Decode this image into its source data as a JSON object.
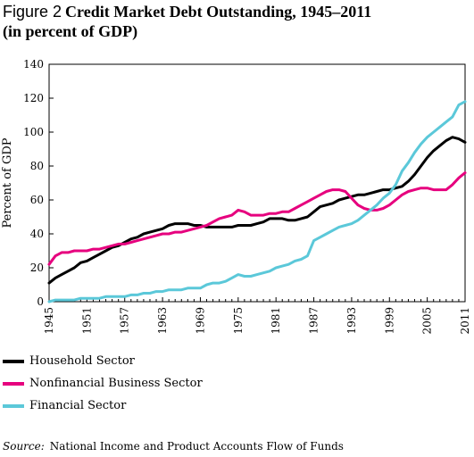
{
  "figure": {
    "label": "Figure 2",
    "title_line1": "Credit Market Debt Outstanding, 1945–2011",
    "title_line2": "(in percent of GDP)"
  },
  "source": {
    "label": "Source:",
    "text": "National Income and Product Accounts Flow of Funds"
  },
  "colors": {
    "household": "#000000",
    "business": "#e6007e",
    "financial": "#5bc8d9",
    "axis": "#000000"
  },
  "chart_data": {
    "type": "line",
    "title": "Credit Market Debt Outstanding, 1945–2011",
    "subtitle": "(in percent of GDP)",
    "xlabel": "",
    "ylabel": "Percent of GDP",
    "xlim": [
      1945,
      2011
    ],
    "ylim": [
      0,
      140
    ],
    "grid": false,
    "legend_position": "bottom-left",
    "x_ticks": [
      1945,
      1951,
      1957,
      1963,
      1969,
      1975,
      1981,
      1987,
      1993,
      1999,
      2005,
      2011
    ],
    "y_ticks": [
      0,
      20,
      40,
      60,
      80,
      100,
      120,
      140
    ],
    "series": [
      {
        "name": "Household Sector",
        "color_key": "household",
        "points": [
          [
            1945,
            11
          ],
          [
            1946,
            14
          ],
          [
            1947,
            16
          ],
          [
            1948,
            18
          ],
          [
            1949,
            20
          ],
          [
            1950,
            23
          ],
          [
            1951,
            24
          ],
          [
            1952,
            26
          ],
          [
            1953,
            28
          ],
          [
            1954,
            30
          ],
          [
            1955,
            32
          ],
          [
            1956,
            33
          ],
          [
            1957,
            35
          ],
          [
            1958,
            37
          ],
          [
            1959,
            38
          ],
          [
            1960,
            40
          ],
          [
            1961,
            41
          ],
          [
            1962,
            42
          ],
          [
            1963,
            43
          ],
          [
            1964,
            45
          ],
          [
            1965,
            46
          ],
          [
            1966,
            46
          ],
          [
            1967,
            46
          ],
          [
            1968,
            45
          ],
          [
            1969,
            45
          ],
          [
            1970,
            44
          ],
          [
            1971,
            44
          ],
          [
            1972,
            44
          ],
          [
            1973,
            44
          ],
          [
            1974,
            44
          ],
          [
            1975,
            45
          ],
          [
            1976,
            45
          ],
          [
            1977,
            45
          ],
          [
            1978,
            46
          ],
          [
            1979,
            47
          ],
          [
            1980,
            49
          ],
          [
            1981,
            49
          ],
          [
            1982,
            49
          ],
          [
            1983,
            48
          ],
          [
            1984,
            48
          ],
          [
            1985,
            49
          ],
          [
            1986,
            50
          ],
          [
            1987,
            53
          ],
          [
            1988,
            56
          ],
          [
            1989,
            57
          ],
          [
            1990,
            58
          ],
          [
            1991,
            60
          ],
          [
            1992,
            61
          ],
          [
            1993,
            62
          ],
          [
            1994,
            63
          ],
          [
            1995,
            63
          ],
          [
            1996,
            64
          ],
          [
            1997,
            65
          ],
          [
            1998,
            66
          ],
          [
            1999,
            66
          ],
          [
            2000,
            67
          ],
          [
            2001,
            68
          ],
          [
            2002,
            71
          ],
          [
            2003,
            75
          ],
          [
            2004,
            80
          ],
          [
            2005,
            85
          ],
          [
            2006,
            89
          ],
          [
            2007,
            92
          ],
          [
            2008,
            95
          ],
          [
            2009,
            97
          ],
          [
            2010,
            96
          ],
          [
            2011,
            94
          ]
        ]
      },
      {
        "name": "Nonfinancial Business Sector",
        "color_key": "business",
        "points": [
          [
            1945,
            22
          ],
          [
            1946,
            27
          ],
          [
            1947,
            29
          ],
          [
            1948,
            29
          ],
          [
            1949,
            30
          ],
          [
            1950,
            30
          ],
          [
            1951,
            30
          ],
          [
            1952,
            31
          ],
          [
            1953,
            31
          ],
          [
            1954,
            32
          ],
          [
            1955,
            33
          ],
          [
            1956,
            34
          ],
          [
            1957,
            34
          ],
          [
            1958,
            35
          ],
          [
            1959,
            36
          ],
          [
            1960,
            37
          ],
          [
            1961,
            38
          ],
          [
            1962,
            39
          ],
          [
            1963,
            40
          ],
          [
            1964,
            40
          ],
          [
            1965,
            41
          ],
          [
            1966,
            41
          ],
          [
            1967,
            42
          ],
          [
            1968,
            43
          ],
          [
            1969,
            44
          ],
          [
            1970,
            45
          ],
          [
            1971,
            47
          ],
          [
            1972,
            49
          ],
          [
            1973,
            50
          ],
          [
            1974,
            51
          ],
          [
            1975,
            54
          ],
          [
            1976,
            53
          ],
          [
            1977,
            51
          ],
          [
            1978,
            51
          ],
          [
            1979,
            51
          ],
          [
            1980,
            52
          ],
          [
            1981,
            52
          ],
          [
            1982,
            53
          ],
          [
            1983,
            53
          ],
          [
            1984,
            55
          ],
          [
            1985,
            57
          ],
          [
            1986,
            59
          ],
          [
            1987,
            61
          ],
          [
            1988,
            63
          ],
          [
            1989,
            65
          ],
          [
            1990,
            66
          ],
          [
            1991,
            66
          ],
          [
            1992,
            65
          ],
          [
            1993,
            61
          ],
          [
            1994,
            57
          ],
          [
            1995,
            55
          ],
          [
            1996,
            54
          ],
          [
            1997,
            54
          ],
          [
            1998,
            55
          ],
          [
            1999,
            57
          ],
          [
            2000,
            60
          ],
          [
            2001,
            63
          ],
          [
            2002,
            65
          ],
          [
            2003,
            66
          ],
          [
            2004,
            67
          ],
          [
            2005,
            67
          ],
          [
            2006,
            66
          ],
          [
            2007,
            66
          ],
          [
            2008,
            66
          ],
          [
            2009,
            69
          ],
          [
            2010,
            73
          ],
          [
            2011,
            76
          ]
        ]
      },
      {
        "name": "Financial Sector",
        "color_key": "financial",
        "points": [
          [
            1945,
            0
          ],
          [
            1946,
            1
          ],
          [
            1947,
            1
          ],
          [
            1948,
            1
          ],
          [
            1949,
            1
          ],
          [
            1950,
            2
          ],
          [
            1951,
            2
          ],
          [
            1952,
            2
          ],
          [
            1953,
            2
          ],
          [
            1954,
            3
          ],
          [
            1955,
            3
          ],
          [
            1956,
            3
          ],
          [
            1957,
            3
          ],
          [
            1958,
            4
          ],
          [
            1959,
            4
          ],
          [
            1960,
            5
          ],
          [
            1961,
            5
          ],
          [
            1962,
            6
          ],
          [
            1963,
            6
          ],
          [
            1964,
            7
          ],
          [
            1965,
            7
          ],
          [
            1966,
            7
          ],
          [
            1967,
            8
          ],
          [
            1968,
            8
          ],
          [
            1969,
            8
          ],
          [
            1970,
            10
          ],
          [
            1971,
            11
          ],
          [
            1972,
            11
          ],
          [
            1973,
            12
          ],
          [
            1974,
            14
          ],
          [
            1975,
            16
          ],
          [
            1976,
            15
          ],
          [
            1977,
            15
          ],
          [
            1978,
            16
          ],
          [
            1979,
            17
          ],
          [
            1980,
            18
          ],
          [
            1981,
            20
          ],
          [
            1982,
            21
          ],
          [
            1983,
            22
          ],
          [
            1984,
            24
          ],
          [
            1985,
            25
          ],
          [
            1986,
            27
          ],
          [
            1987,
            36
          ],
          [
            1988,
            38
          ],
          [
            1989,
            40
          ],
          [
            1990,
            42
          ],
          [
            1991,
            44
          ],
          [
            1992,
            45
          ],
          [
            1993,
            46
          ],
          [
            1994,
            48
          ],
          [
            1995,
            51
          ],
          [
            1996,
            54
          ],
          [
            1997,
            57
          ],
          [
            1998,
            61
          ],
          [
            1999,
            64
          ],
          [
            2000,
            69
          ],
          [
            2001,
            77
          ],
          [
            2002,
            82
          ],
          [
            2003,
            88
          ],
          [
            2004,
            93
          ],
          [
            2005,
            97
          ],
          [
            2006,
            100
          ],
          [
            2007,
            103
          ],
          [
            2008,
            106
          ],
          [
            2009,
            109
          ],
          [
            2010,
            116
          ],
          [
            2011,
            118
          ]
        ]
      }
    ]
  }
}
